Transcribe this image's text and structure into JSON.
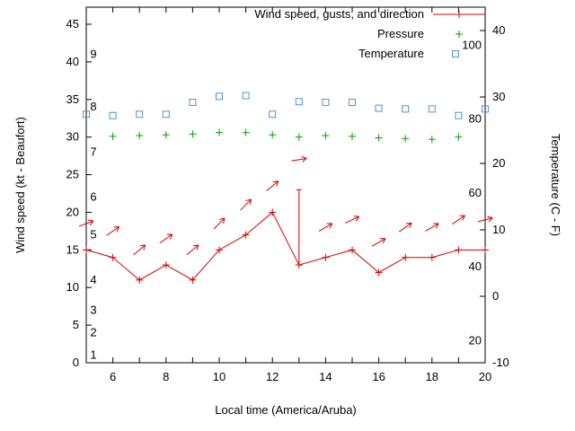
{
  "page": {
    "background": "#ffffff"
  },
  "chart_data": {
    "type": "line",
    "title": "",
    "xlabel": "Local time (America/Aruba)",
    "ylabel_left": "Wind speed (kt - Beaufort)",
    "ylabel_right": "Temperature (C - F)",
    "x_range": [
      5,
      20
    ],
    "x_tick_minor": [
      5,
      6,
      7,
      8,
      9,
      10,
      11,
      12,
      13,
      14,
      15,
      16,
      17,
      18,
      19,
      20
    ],
    "x_tick_labels": [
      6,
      8,
      10,
      12,
      14,
      16,
      18,
      20
    ],
    "left_axis": {
      "ticks": [
        0,
        5,
        10,
        15,
        20,
        25,
        30,
        35,
        40,
        45
      ],
      "unit": "kt"
    },
    "right_axis": {
      "ticks_c": [
        -10,
        0,
        10,
        20,
        30,
        40
      ],
      "unit": "C"
    },
    "beaufort_labels": {
      "labels": [
        "1",
        "2",
        "3",
        "4",
        "5",
        "6",
        "7",
        "8",
        "9"
      ],
      "kt": [
        1,
        4,
        7,
        11,
        17,
        22,
        28,
        34,
        41
      ]
    },
    "fahrenheit_labels": {
      "labels": [
        "20",
        "40",
        "60",
        "80",
        "100"
      ],
      "f": [
        20,
        40,
        60,
        80,
        100
      ]
    },
    "legend": [
      {
        "label": "Wind speed, gusts, and direction",
        "series": "wind",
        "marker": "line-plus"
      },
      {
        "label": "Pressure",
        "series": "pressure",
        "marker": "plus"
      },
      {
        "label": "Temperature",
        "series": "temperature",
        "marker": "open-square"
      }
    ],
    "colors": {
      "wind": "#d40000",
      "pressure": "#00a000",
      "temperature": "#4f94cd",
      "frame": "#000000",
      "text": "#000000"
    },
    "series": {
      "wind": {
        "x": [
          5,
          6,
          7,
          8,
          9,
          10,
          11,
          12,
          13,
          14,
          15,
          16,
          17,
          18,
          19,
          20
        ],
        "speed": [
          15,
          14,
          11,
          13,
          11,
          15,
          17,
          20,
          13,
          14,
          15,
          12,
          14,
          14,
          15,
          15
        ],
        "gust": [
          15,
          14,
          11,
          13,
          11,
          15,
          17,
          20,
          23,
          14,
          15,
          12,
          14,
          14,
          15,
          15
        ]
      },
      "arrows": {
        "x": [
          5,
          6,
          7,
          8,
          9,
          10,
          11,
          12,
          13,
          14,
          15,
          16,
          17,
          18,
          19,
          20
        ],
        "kt": [
          18.5,
          17.5,
          15,
          16.5,
          15,
          18.5,
          21,
          23.5,
          27,
          18,
          19,
          16,
          18,
          18,
          19,
          19
        ],
        "angle_deg": [
          20,
          35,
          40,
          35,
          40,
          45,
          45,
          40,
          10,
          30,
          25,
          30,
          35,
          30,
          35,
          15
        ]
      },
      "pressure": {
        "x": [
          6,
          7,
          8,
          9,
          10,
          11,
          12,
          13,
          14,
          15,
          16,
          17,
          18,
          19
        ],
        "y_left_axis": [
          30.1,
          30.2,
          30.3,
          30.4,
          30.6,
          30.6,
          30.3,
          30.0,
          30.2,
          30.1,
          29.9,
          29.8,
          29.7,
          30.0
        ]
      },
      "temperature": {
        "x": [
          5,
          6,
          7,
          8,
          9,
          10,
          11,
          12,
          13,
          14,
          15,
          16,
          17,
          18,
          19,
          20
        ],
        "c": [
          27.4,
          27.2,
          27.4,
          27.4,
          29.2,
          30.1,
          30.2,
          27.4,
          29.3,
          29.2,
          29.2,
          28.3,
          28.2,
          28.2,
          27.2,
          28.2
        ]
      }
    },
    "layout_hints": {
      "grid": false,
      "legend_position": "top-center-inside",
      "frame": "full-box",
      "marker_size": 7
    }
  }
}
